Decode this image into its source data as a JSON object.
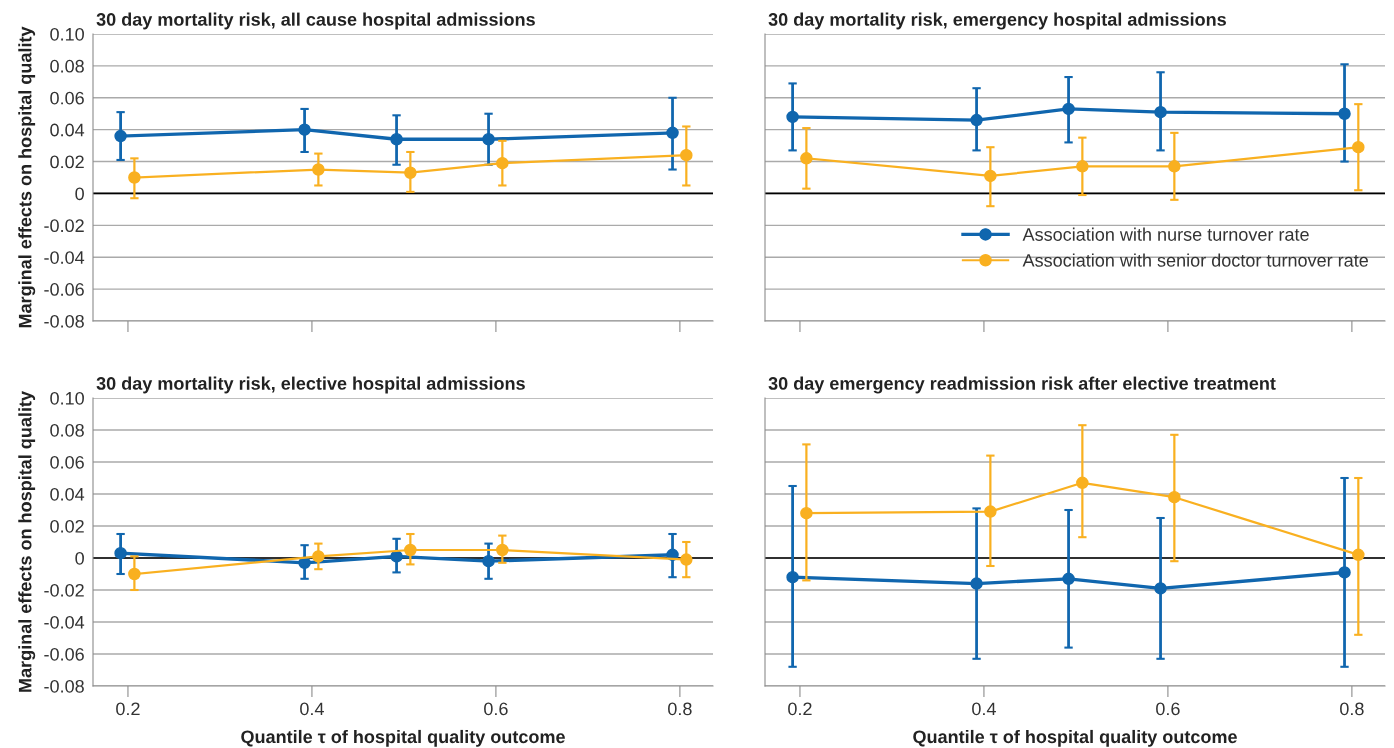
{
  "chart_data": [
    {
      "type": "line",
      "title": "30 day mortality risk, all cause hospital admissions",
      "ylabel": "Marginal effects on hospital quality",
      "xlim": [
        0.162,
        0.836
      ],
      "xticks": [
        {
          "value": 0.2,
          "label": null
        },
        {
          "value": 0.4,
          "label": null
        },
        {
          "value": 0.6,
          "label": null
        },
        {
          "value": 0.8,
          "label": null
        }
      ],
      "ylim": [
        -0.08,
        0.1
      ],
      "yticks": [
        {
          "value": -0.08,
          "label": "-0.08"
        },
        {
          "value": -0.06,
          "label": "-0.06"
        },
        {
          "value": -0.04,
          "label": "-0.04"
        },
        {
          "value": -0.02,
          "label": "-0.02"
        },
        {
          "value": 0,
          "label": "0"
        },
        {
          "value": 0.02,
          "label": "0.02"
        },
        {
          "value": 0.04,
          "label": "0.04"
        },
        {
          "value": 0.06,
          "label": "0.06"
        },
        {
          "value": 0.08,
          "label": "0.08"
        },
        {
          "value": 0.1,
          "label": "0.10"
        }
      ],
      "tick_labels": "y",
      "grid": "y",
      "marker": "circle",
      "ref_lines": [
        {
          "axis": "y",
          "value": 0,
          "color": "#000000"
        }
      ],
      "series": [
        {
          "color": "#1066ae",
          "x": [
            0.192,
            0.392,
            0.492,
            0.592,
            0.792
          ],
          "values": [
            0.036,
            0.04,
            0.034,
            0.034,
            0.038
          ],
          "errors": [
            [
              0.021,
              0.051
            ],
            [
              0.026,
              0.053
            ],
            [
              0.018,
              0.049
            ],
            [
              0.018,
              0.05
            ],
            [
              0.015,
              0.06
            ]
          ]
        },
        {
          "color": "#f9b020",
          "x": [
            0.207,
            0.407,
            0.507,
            0.607,
            0.807
          ],
          "values": [
            0.01,
            0.015,
            0.013,
            0.019,
            0.024
          ],
          "errors": [
            [
              -0.003,
              0.022
            ],
            [
              0.005,
              0.025
            ],
            [
              0.001,
              0.026
            ],
            [
              0.005,
              0.033
            ],
            [
              0.005,
              0.042
            ]
          ]
        }
      ]
    },
    {
      "type": "line",
      "title": "30 day mortality risk, emergency hospital admissions",
      "xlim": [
        0.162,
        0.836
      ],
      "xticks": [
        {
          "value": 0.2,
          "label": null
        },
        {
          "value": 0.4,
          "label": null
        },
        {
          "value": 0.6,
          "label": null
        },
        {
          "value": 0.8,
          "label": null
        }
      ],
      "ylim": [
        -0.08,
        0.1
      ],
      "yticks": [
        {
          "value": -0.08,
          "label": null
        },
        {
          "value": -0.06,
          "label": null
        },
        {
          "value": -0.04,
          "label": null
        },
        {
          "value": -0.02,
          "label": null
        },
        {
          "value": 0,
          "label": null
        },
        {
          "value": 0.02,
          "label": null
        },
        {
          "value": 0.04,
          "label": null
        },
        {
          "value": 0.06,
          "label": null
        },
        {
          "value": 0.08,
          "label": null
        },
        {
          "value": 0.1,
          "label": null
        }
      ],
      "tick_labels": false,
      "grid": "y",
      "marker": "circle",
      "legend": "bottom right",
      "ref_lines": [
        {
          "axis": "y",
          "value": 0,
          "color": "#000000"
        }
      ],
      "series": [
        {
          "name": "Association with nurse turnover rate",
          "color": "#1066ae",
          "x": [
            0.192,
            0.392,
            0.492,
            0.592,
            0.792
          ],
          "values": [
            0.048,
            0.046,
            0.053,
            0.051,
            0.05
          ],
          "errors": [
            [
              0.027,
              0.069
            ],
            [
              0.027,
              0.066
            ],
            [
              0.032,
              0.073
            ],
            [
              0.027,
              0.076
            ],
            [
              0.02,
              0.081
            ]
          ]
        },
        {
          "name": "Association with senior doctor turnover rate",
          "color": "#f9b020",
          "x": [
            0.207,
            0.407,
            0.507,
            0.607,
            0.807
          ],
          "values": [
            0.022,
            0.011,
            0.017,
            0.017,
            0.029
          ],
          "errors": [
            [
              0.003,
              0.041
            ],
            [
              -0.008,
              0.029
            ],
            [
              -0.001,
              0.035
            ],
            [
              -0.004,
              0.038
            ],
            [
              0.002,
              0.056
            ]
          ]
        }
      ]
    },
    {
      "type": "line",
      "title": "30 day mortality risk, elective hospital admissions",
      "xlabel": "Quantile τ of hospital quality outcome",
      "ylabel": "Marginal effects on hospital quality",
      "xlim": [
        0.162,
        0.836
      ],
      "xticks": [
        {
          "value": 0.2,
          "label": "0.2"
        },
        {
          "value": 0.4,
          "label": "0.4"
        },
        {
          "value": 0.6,
          "label": "0.6"
        },
        {
          "value": 0.8,
          "label": "0.8"
        }
      ],
      "ylim": [
        -0.08,
        0.1
      ],
      "yticks": [
        {
          "value": -0.08,
          "label": "-0.08"
        },
        {
          "value": -0.06,
          "label": "-0.06"
        },
        {
          "value": -0.04,
          "label": "-0.04"
        },
        {
          "value": -0.02,
          "label": "-0.02"
        },
        {
          "value": 0,
          "label": "0"
        },
        {
          "value": 0.02,
          "label": "0.02"
        },
        {
          "value": 0.04,
          "label": "0.04"
        },
        {
          "value": 0.06,
          "label": "0.06"
        },
        {
          "value": 0.08,
          "label": "0.08"
        },
        {
          "value": 0.1,
          "label": "0.10"
        }
      ],
      "grid": "y",
      "marker": "circle",
      "ref_lines": [
        {
          "axis": "y",
          "value": 0,
          "color": "#000000"
        }
      ],
      "series": [
        {
          "color": "#1066ae",
          "x": [
            0.192,
            0.392,
            0.492,
            0.592,
            0.792
          ],
          "values": [
            0.003,
            -0.003,
            0.001,
            -0.002,
            0.002
          ],
          "errors": [
            [
              -0.01,
              0.015
            ],
            [
              -0.013,
              0.008
            ],
            [
              -0.009,
              0.012
            ],
            [
              -0.013,
              0.009
            ],
            [
              -0.012,
              0.015
            ]
          ]
        },
        {
          "color": "#f9b020",
          "x": [
            0.207,
            0.407,
            0.507,
            0.607,
            0.807
          ],
          "values": [
            -0.01,
            0.001,
            0.005,
            0.005,
            -0.001
          ],
          "errors": [
            [
              -0.02,
              0.001
            ],
            [
              -0.007,
              0.009
            ],
            [
              -0.004,
              0.015
            ],
            [
              -0.003,
              0.014
            ],
            [
              -0.012,
              0.01
            ]
          ]
        }
      ]
    },
    {
      "type": "line",
      "title": "30 day emergency readmission risk after elective treatment",
      "xlabel": "Quantile τ of hospital quality outcome",
      "xlim": [
        0.162,
        0.836
      ],
      "xticks": [
        {
          "value": 0.2,
          "label": "0.2"
        },
        {
          "value": 0.4,
          "label": "0.4"
        },
        {
          "value": 0.6,
          "label": "0.6"
        },
        {
          "value": 0.8,
          "label": "0.8"
        }
      ],
      "ylim": [
        -0.08,
        0.1
      ],
      "yticks": [
        {
          "value": -0.08,
          "label": null
        },
        {
          "value": -0.06,
          "label": null
        },
        {
          "value": -0.04,
          "label": null
        },
        {
          "value": -0.02,
          "label": null
        },
        {
          "value": 0,
          "label": null
        },
        {
          "value": 0.02,
          "label": null
        },
        {
          "value": 0.04,
          "label": null
        },
        {
          "value": 0.06,
          "label": null
        },
        {
          "value": 0.08,
          "label": null
        },
        {
          "value": 0.1,
          "label": null
        }
      ],
      "tick_labels": "x",
      "grid": "y",
      "marker": "circle",
      "ref_lines": [
        {
          "axis": "y",
          "value": 0,
          "color": "#000000"
        }
      ],
      "series": [
        {
          "color": "#1066ae",
          "x": [
            0.192,
            0.392,
            0.492,
            0.592,
            0.792
          ],
          "values": [
            -0.012,
            -0.016,
            -0.013,
            -0.019,
            -0.009
          ],
          "errors": [
            [
              -0.068,
              0.045
            ],
            [
              -0.063,
              0.031
            ],
            [
              -0.056,
              0.03
            ],
            [
              -0.063,
              0.025
            ],
            [
              -0.068,
              0.05
            ]
          ]
        },
        {
          "color": "#f9b020",
          "x": [
            0.207,
            0.407,
            0.507,
            0.607,
            0.807
          ],
          "values": [
            0.028,
            0.029,
            0.047,
            0.038,
            0.002
          ],
          "errors": [
            [
              -0.014,
              0.071
            ],
            [
              -0.005,
              0.064
            ],
            [
              0.013,
              0.083
            ],
            [
              -0.002,
              0.077
            ],
            [
              -0.048,
              0.05
            ]
          ]
        }
      ]
    }
  ]
}
